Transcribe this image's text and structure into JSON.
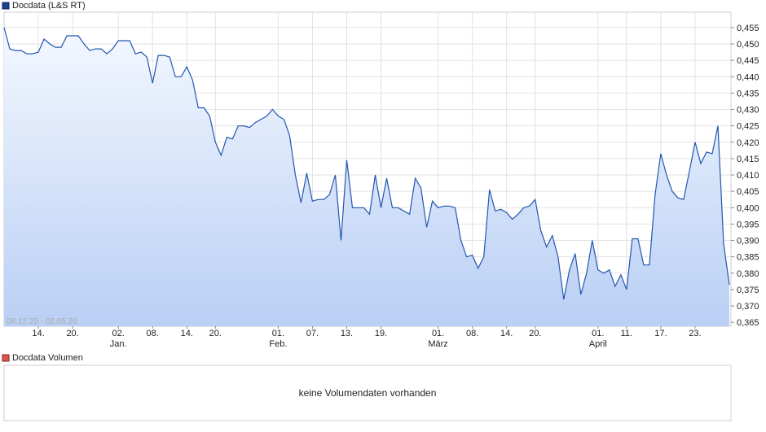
{
  "chart_data": {
    "type": "line",
    "ylim": [
      0.3638,
      0.4597
    ],
    "yticks": [
      {
        "value": 0.365,
        "label": "0,365"
      },
      {
        "value": 0.37,
        "label": "0,370"
      },
      {
        "value": 0.375,
        "label": "0,375"
      },
      {
        "value": 0.38,
        "label": "0,380"
      },
      {
        "value": 0.385,
        "label": "0,385"
      },
      {
        "value": 0.39,
        "label": "0,390"
      },
      {
        "value": 0.395,
        "label": "0,395"
      },
      {
        "value": 0.4,
        "label": "0,400"
      },
      {
        "value": 0.405,
        "label": "0,405"
      },
      {
        "value": 0.41,
        "label": "0,410"
      },
      {
        "value": 0.415,
        "label": "0,415"
      },
      {
        "value": 0.42,
        "label": "0,420"
      },
      {
        "value": 0.425,
        "label": "0,425"
      },
      {
        "value": 0.43,
        "label": "0,430"
      },
      {
        "value": 0.435,
        "label": "0,435"
      },
      {
        "value": 0.44,
        "label": "0,440"
      },
      {
        "value": 0.445,
        "label": "0,445"
      },
      {
        "value": 0.45,
        "label": "0,450"
      },
      {
        "value": 0.455,
        "label": "0,455"
      }
    ],
    "xticks": [
      {
        "value": 6,
        "label": "14."
      },
      {
        "value": 12,
        "label": "20."
      },
      {
        "value": 20,
        "label": "02."
      },
      {
        "value": 26,
        "label": "08."
      },
      {
        "value": 32,
        "label": "14."
      },
      {
        "value": 37,
        "label": "20."
      },
      {
        "value": 48,
        "label": "01."
      },
      {
        "value": 54,
        "label": "07."
      },
      {
        "value": 60,
        "label": "13."
      },
      {
        "value": 66,
        "label": "19."
      },
      {
        "value": 76,
        "label": "01."
      },
      {
        "value": 82,
        "label": "08."
      },
      {
        "value": 88,
        "label": "14."
      },
      {
        "value": 93,
        "label": "20."
      },
      {
        "value": 104,
        "label": "01."
      },
      {
        "value": 109,
        "label": "11."
      },
      {
        "value": 115,
        "label": "17."
      },
      {
        "value": 121,
        "label": "23."
      }
    ],
    "month_labels": [
      {
        "value": 20,
        "label": "Jan."
      },
      {
        "value": 48,
        "label": "Feb."
      },
      {
        "value": 76,
        "label": "März"
      },
      {
        "value": 104,
        "label": "April"
      }
    ],
    "date_range": "08.12.25 - 02.05.26",
    "grid": true,
    "series": [
      {
        "name": "Docdata (L&S RT)",
        "color": "#2456b0",
        "values": [
          0.455,
          0.4485,
          0.448,
          0.448,
          0.447,
          0.447,
          0.4475,
          0.4515,
          0.45,
          0.449,
          0.449,
          0.4525,
          0.4525,
          0.4525,
          0.45,
          0.448,
          0.4485,
          0.4485,
          0.447,
          0.4485,
          0.451,
          0.451,
          0.451,
          0.447,
          0.4475,
          0.446,
          0.438,
          0.4465,
          0.4465,
          0.446,
          0.44,
          0.44,
          0.443,
          0.439,
          0.4305,
          0.4305,
          0.428,
          0.42,
          0.416,
          0.4215,
          0.421,
          0.425,
          0.425,
          0.4245,
          0.426,
          0.427,
          0.428,
          0.43,
          0.428,
          0.427,
          0.422,
          0.41,
          0.4015,
          0.4105,
          0.402,
          0.4025,
          0.4025,
          0.404,
          0.41,
          0.39,
          0.4145,
          0.4,
          0.4,
          0.4,
          0.398,
          0.41,
          0.4,
          0.409,
          0.4,
          0.4,
          0.399,
          0.398,
          0.409,
          0.406,
          0.394,
          0.402,
          0.4,
          0.4005,
          0.4005,
          0.4,
          0.39,
          0.385,
          0.3855,
          0.3815,
          0.385,
          0.4055,
          0.399,
          0.3995,
          0.3985,
          0.3965,
          0.398,
          0.4,
          0.4005,
          0.4025,
          0.393,
          0.388,
          0.3915,
          0.385,
          0.372,
          0.381,
          0.386,
          0.3735,
          0.38,
          0.39,
          0.381,
          0.38,
          0.381,
          0.376,
          0.3795,
          0.375,
          0.3905,
          0.3905,
          0.3825,
          0.3825,
          0.404,
          0.4165,
          0.41,
          0.405,
          0.403,
          0.4025,
          0.411,
          0.42,
          0.4135,
          0.417,
          0.4165,
          0.425,
          0.389,
          0.3765
        ]
      }
    ]
  },
  "volume_panel": {
    "title": "Docdata Volumen",
    "message": "keine Volumendaten vorhanden"
  }
}
